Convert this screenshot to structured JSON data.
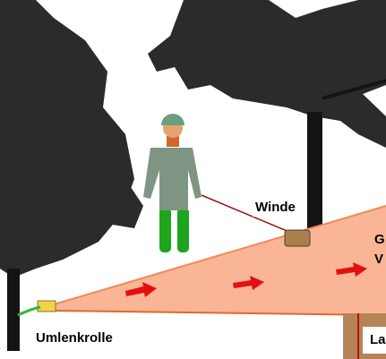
{
  "labels": {
    "winch": "Winde",
    "pulley": "Umlenkrolle",
    "right_top": "G",
    "right_bottom": "V",
    "load": "La"
  }
}
